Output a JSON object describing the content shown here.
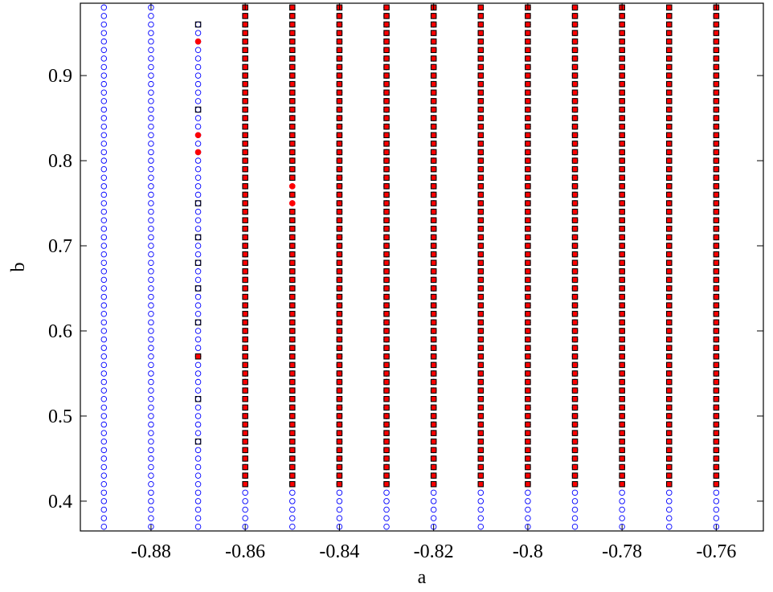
{
  "chart_data": {
    "type": "scatter",
    "title": "",
    "xlabel": "a",
    "ylabel": "b",
    "xlim": [
      -0.895,
      -0.75
    ],
    "ylim": [
      0.365,
      0.985
    ],
    "xticks": [
      -0.88,
      -0.86,
      -0.84,
      -0.82,
      -0.8,
      -0.78,
      -0.76
    ],
    "xtick_labels": [
      "-0.88",
      "-0.86",
      "-0.84",
      "-0.82",
      "-0.8",
      "-0.78",
      "-0.76"
    ],
    "yticks": [
      0.4,
      0.5,
      0.6,
      0.7,
      0.8,
      0.9
    ],
    "ytick_labels": [
      "0.4",
      "0.5",
      "0.6",
      "0.7",
      "0.8",
      "0.9"
    ],
    "grid": false,
    "legend": "none",
    "grid_spacing": {
      "a_step": 0.01,
      "b_step": 0.01
    },
    "series": [
      {
        "marker": "open-circle",
        "color": "#0000ff",
        "a_values": [
          -0.89,
          -0.88,
          -0.87,
          -0.86,
          -0.85,
          -0.84,
          -0.83,
          -0.82,
          -0.81,
          -0.8,
          -0.79,
          -0.78,
          -0.77,
          -0.76
        ],
        "b_range": [
          0.37,
          0.98
        ],
        "b_range_by_a": {
          "-0.87": [
            0.37,
            0.96
          ]
        }
      },
      {
        "marker": "open-square",
        "color": "#000000",
        "points_a_-0.87": [
          0.47,
          0.52,
          0.57,
          0.61,
          0.65,
          0.68,
          0.71,
          0.75,
          0.86,
          0.96
        ],
        "points_a_-0.86": [
          0.61
        ],
        "columns_a": [
          -0.86,
          -0.85,
          -0.84,
          -0.83,
          -0.82,
          -0.81,
          -0.8,
          -0.79,
          -0.78,
          -0.77,
          -0.76
        ],
        "columns_b_range": [
          0.42,
          0.98
        ]
      },
      {
        "marker": "filled-circle",
        "color": "#ff0000",
        "points_a_-0.87": [
          0.57,
          0.81,
          0.83,
          0.94
        ],
        "points_a_-0.85": [
          0.75,
          0.77
        ],
        "columns_a": [
          -0.86,
          -0.85,
          -0.84,
          -0.83,
          -0.82,
          -0.81,
          -0.8,
          -0.79,
          -0.78,
          -0.77,
          -0.76
        ],
        "columns_b_range": [
          0.42,
          0.98
        ]
      }
    ]
  }
}
